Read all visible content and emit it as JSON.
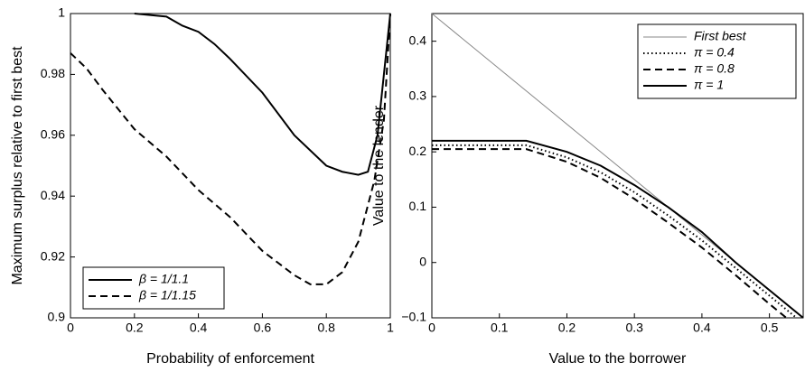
{
  "chart_data": [
    {
      "type": "line",
      "xlabel": "Probability of enforcement",
      "ylabel": "Maximum surplus relative to first best",
      "xlim": [
        0,
        1
      ],
      "ylim": [
        0.9,
        1
      ],
      "xticks": [
        0,
        0.2,
        0.4,
        0.6,
        0.8,
        1
      ],
      "yticks": [
        0.9,
        0.92,
        0.94,
        0.96,
        0.98,
        1
      ],
      "legend": "lower left",
      "series": [
        {
          "name": "β = 1/1.1",
          "color": "#000000",
          "style": "solid",
          "x": [
            0.2,
            0.3,
            0.35,
            0.4,
            0.45,
            0.5,
            0.6,
            0.7,
            0.8,
            0.85,
            0.9,
            0.93,
            0.96,
            1.0
          ],
          "values": [
            1.0,
            0.999,
            0.996,
            0.994,
            0.99,
            0.985,
            0.974,
            0.96,
            0.95,
            0.948,
            0.947,
            0.948,
            0.96,
            1.0
          ]
        },
        {
          "name": "β = 1/1.15",
          "color": "#000000",
          "style": "dashed",
          "x": [
            0,
            0.05,
            0.1,
            0.2,
            0.3,
            0.4,
            0.5,
            0.6,
            0.7,
            0.75,
            0.8,
            0.85,
            0.9,
            0.95,
            0.98,
            1.0
          ],
          "values": [
            0.987,
            0.982,
            0.975,
            0.962,
            0.953,
            0.942,
            0.933,
            0.922,
            0.914,
            0.911,
            0.911,
            0.915,
            0.925,
            0.945,
            0.965,
            1.0
          ]
        }
      ]
    },
    {
      "type": "line",
      "xlabel": "Value to the borrower",
      "ylabel": "Value to the lender",
      "xlim": [
        0,
        0.55
      ],
      "ylim": [
        -0.1,
        0.45
      ],
      "xticks": [
        0,
        0.1,
        0.2,
        0.3,
        0.4,
        0.5
      ],
      "yticks": [
        {
          "value": -0.1,
          "label": "−0.1"
        },
        0,
        0.1,
        0.2,
        0.3,
        0.4
      ],
      "legend": "upper right",
      "series": [
        {
          "name": "First best",
          "color": "#888888",
          "style": "solid",
          "x": [
            0,
            0.55
          ],
          "values": [
            0.45,
            -0.1
          ]
        },
        {
          "name": "π = 0.4",
          "color": "#000000",
          "style": "dotted",
          "x": [
            0,
            0.14,
            0.2,
            0.25,
            0.3,
            0.35,
            0.4,
            0.45,
            0.5,
            0.54
          ],
          "values": [
            0.212,
            0.212,
            0.19,
            0.163,
            0.127,
            0.085,
            0.04,
            -0.01,
            -0.06,
            -0.1
          ]
        },
        {
          "name": "π = 0.8",
          "color": "#000000",
          "style": "dashed",
          "x": [
            0,
            0.14,
            0.2,
            0.25,
            0.3,
            0.35,
            0.4,
            0.45,
            0.5,
            0.525
          ],
          "values": [
            0.205,
            0.205,
            0.182,
            0.153,
            0.115,
            0.072,
            0.027,
            -0.023,
            -0.075,
            -0.1
          ]
        },
        {
          "name": "π = 1",
          "color": "#000000",
          "style": "solid",
          "x": [
            0,
            0.14,
            0.2,
            0.25,
            0.3,
            0.35,
            0.4,
            0.45,
            0.5,
            0.55
          ],
          "values": [
            0.22,
            0.22,
            0.2,
            0.175,
            0.14,
            0.1,
            0.055,
            0.0,
            -0.05,
            -0.1
          ]
        }
      ]
    }
  ]
}
